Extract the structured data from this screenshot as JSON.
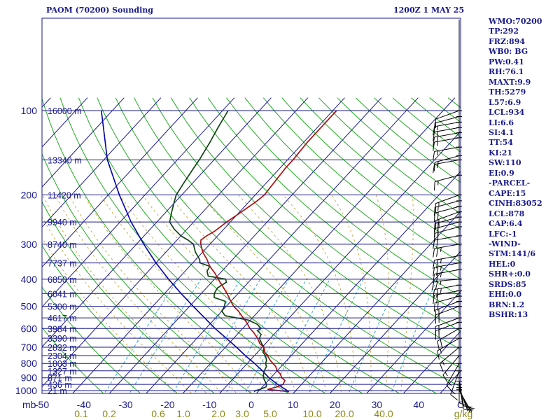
{
  "header": {
    "station": "PAOM (70200) Sounding",
    "time": "1200Z  1 MAY 25"
  },
  "indices": [
    "WMO:70200",
    "TP:292",
    "FRZ:894",
    "WB0: BG",
    "PW:0.41",
    "RH:76.1",
    "MAXT:9.9",
    "TH:5279",
    "L57:6.9",
    "LCL:934",
    "LI:6.6",
    "SI:4.1",
    "TT:54",
    "KI:21",
    "SW:110",
    "EI:0.9",
    "-PARCEL-",
    "CAPE:15",
    "CINH:83052",
    "LCL:878",
    "CAP:6.4",
    "LFC:-1",
    "-WIND-",
    "STM:141/6",
    "HEL:0",
    "SHR+:0.0",
    "SRDS:85",
    "EHI:0.0",
    "BRN:1.2",
    "BSHR:13"
  ],
  "colors": {
    "isobar": "#1a1a8c",
    "isotherm": "#1a1a8c",
    "dry_adiabat": "#22aa22",
    "moist_adiabat": "#c9a13b",
    "mixing_ratio": "#3fa7d6",
    "temperature": "#aa1111",
    "dewpoint": "#114411",
    "parcel": "#0000aa",
    "tick_label": "#1a1a8c",
    "mixing_label": "#8c8a1a"
  },
  "chart_data": {
    "type": "skew-t",
    "pressure_unit": "mb",
    "temperature_unit": "C",
    "mixing_ratio_unit": "g/kg",
    "pressure_range": [
      1000,
      100
    ],
    "temperature_range": [
      -50,
      50
    ],
    "pressure_ticks": [
      100,
      200,
      300,
      400,
      500,
      600,
      700,
      800,
      900,
      1000
    ],
    "temperature_ticks": [
      -50,
      -40,
      -30,
      -20,
      -10,
      0,
      10,
      20,
      30,
      40
    ],
    "temperature_tick_labels": [
      "-50",
      "-40",
      "-30",
      "-20",
      "-10",
      "0",
      "10",
      "20",
      "30",
      "40",
      "C"
    ],
    "mixing_ratio_labels": [
      "0.1",
      "0.2",
      "0.6",
      "1.0",
      "2.0",
      "3.0",
      "5.0",
      "10.0",
      "20.0",
      "40.0",
      "g/kg"
    ],
    "heights": [
      {
        "p": 100,
        "label": "16000 m"
      },
      {
        "p": 150,
        "label": "13340 m"
      },
      {
        "p": 200,
        "label": "11420 m"
      },
      {
        "p": 250,
        "label": "9940 m"
      },
      {
        "p": 300,
        "label": "8740 m"
      },
      {
        "p": 350,
        "label": "7737 m"
      },
      {
        "p": 400,
        "label": "6850 m"
      },
      {
        "p": 450,
        "label": "6041 m"
      },
      {
        "p": 500,
        "label": "5300 m"
      },
      {
        "p": 550,
        "label": "4617 m"
      },
      {
        "p": 600,
        "label": "3984 m"
      },
      {
        "p": 650,
        "label": "3390 m"
      },
      {
        "p": 700,
        "label": "2832 m"
      },
      {
        "p": 750,
        "label": "2304 m"
      },
      {
        "p": 800,
        "label": "1803 m"
      },
      {
        "p": 850,
        "label": "1327 m"
      },
      {
        "p": 900,
        "label": "871 m"
      },
      {
        "p": 950,
        "label": "436 m"
      },
      {
        "p": 1000,
        "label": "21 m"
      }
    ],
    "temperature_profile": [
      {
        "p": 1010,
        "t": 8.5
      },
      {
        "p": 1000,
        "t": 5.5
      },
      {
        "p": 990,
        "t": 2.0
      },
      {
        "p": 970,
        "t": 4.0
      },
      {
        "p": 950,
        "t": 5.0
      },
      {
        "p": 920,
        "t": 4.5
      },
      {
        "p": 900,
        "t": 3.0
      },
      {
        "p": 870,
        "t": 1.5
      },
      {
        "p": 850,
        "t": 0.0
      },
      {
        "p": 820,
        "t": -1.5
      },
      {
        "p": 800,
        "t": -3.0
      },
      {
        "p": 780,
        "t": -4.5
      },
      {
        "p": 750,
        "t": -6.5
      },
      {
        "p": 730,
        "t": -8.0
      },
      {
        "p": 700,
        "t": -9.5
      },
      {
        "p": 680,
        "t": -11.5
      },
      {
        "p": 650,
        "t": -13.5
      },
      {
        "p": 620,
        "t": -16.0
      },
      {
        "p": 600,
        "t": -18.0
      },
      {
        "p": 570,
        "t": -20.5
      },
      {
        "p": 550,
        "t": -22.5
      },
      {
        "p": 520,
        "t": -25.5
      },
      {
        "p": 500,
        "t": -28.0
      },
      {
        "p": 480,
        "t": -30.0
      },
      {
        "p": 450,
        "t": -33.0
      },
      {
        "p": 420,
        "t": -36.5
      },
      {
        "p": 400,
        "t": -39.0
      },
      {
        "p": 380,
        "t": -41.5
      },
      {
        "p": 360,
        "t": -44.5
      },
      {
        "p": 340,
        "t": -47.0
      },
      {
        "p": 320,
        "t": -50.0
      },
      {
        "p": 300,
        "t": -52.5
      },
      {
        "p": 290,
        "t": -53.5
      },
      {
        "p": 280,
        "t": -53.0
      },
      {
        "p": 270,
        "t": -52.0
      },
      {
        "p": 250,
        "t": -51.0
      },
      {
        "p": 230,
        "t": -49.5
      },
      {
        "p": 210,
        "t": -48.0
      },
      {
        "p": 200,
        "t": -47.5
      },
      {
        "p": 180,
        "t": -48.0
      },
      {
        "p": 160,
        "t": -48.5
      },
      {
        "p": 150,
        "t": -48.5
      },
      {
        "p": 130,
        "t": -49.0
      },
      {
        "p": 115,
        "t": -49.0
      },
      {
        "p": 100,
        "t": -49.0
      }
    ],
    "dewpoint_profile": [
      {
        "p": 1010,
        "t": -1.0
      },
      {
        "p": 1000,
        "t": -1.0
      },
      {
        "p": 990,
        "t": 0.0
      },
      {
        "p": 970,
        "t": 1.0
      },
      {
        "p": 950,
        "t": 0.5
      },
      {
        "p": 920,
        "t": -1.0
      },
      {
        "p": 900,
        "t": -2.0
      },
      {
        "p": 870,
        "t": -3.0
      },
      {
        "p": 850,
        "t": -3.5
      },
      {
        "p": 820,
        "t": -4.0
      },
      {
        "p": 800,
        "t": -5.0
      },
      {
        "p": 780,
        "t": -5.5
      },
      {
        "p": 750,
        "t": -7.0
      },
      {
        "p": 730,
        "t": -8.5
      },
      {
        "p": 700,
        "t": -9.5
      },
      {
        "p": 680,
        "t": -11.0
      },
      {
        "p": 650,
        "t": -13.0
      },
      {
        "p": 630,
        "t": -13.5
      },
      {
        "p": 610,
        "t": -15.5
      },
      {
        "p": 600,
        "t": -15.0
      },
      {
        "p": 580,
        "t": -17.0
      },
      {
        "p": 560,
        "t": -20.5
      },
      {
        "p": 540,
        "t": -28.0
      },
      {
        "p": 520,
        "t": -30.0
      },
      {
        "p": 500,
        "t": -30.5
      },
      {
        "p": 480,
        "t": -31.5
      },
      {
        "p": 465,
        "t": -35.5
      },
      {
        "p": 450,
        "t": -36.5
      },
      {
        "p": 430,
        "t": -37.0
      },
      {
        "p": 410,
        "t": -36.0
      },
      {
        "p": 400,
        "t": -37.0
      },
      {
        "p": 390,
        "t": -42.5
      },
      {
        "p": 375,
        "t": -44.0
      },
      {
        "p": 360,
        "t": -44.5
      },
      {
        "p": 350,
        "t": -48.0
      },
      {
        "p": 340,
        "t": -49.0
      },
      {
        "p": 320,
        "t": -52.0
      },
      {
        "p": 300,
        "t": -54.5
      },
      {
        "p": 290,
        "t": -57.0
      },
      {
        "p": 280,
        "t": -60.0
      },
      {
        "p": 265,
        "t": -63.5
      },
      {
        "p": 250,
        "t": -66.5
      },
      {
        "p": 230,
        "t": -68.5
      },
      {
        "p": 210,
        "t": -70.5
      },
      {
        "p": 200,
        "t": -71.5
      },
      {
        "p": 180,
        "t": -72.5
      },
      {
        "p": 160,
        "t": -73.5
      },
      {
        "p": 150,
        "t": -74.0
      },
      {
        "p": 130,
        "t": -75.5
      },
      {
        "p": 115,
        "t": -77.0
      },
      {
        "p": 100,
        "t": -78.5
      }
    ],
    "parcel_profile": [
      {
        "p": 1010,
        "t": 8.5
      },
      {
        "p": 950,
        "t": 3.5
      },
      {
        "p": 900,
        "t": -0.5
      },
      {
        "p": 850,
        "t": -4.0
      },
      {
        "p": 800,
        "t": -8.0
      },
      {
        "p": 750,
        "t": -12.5
      },
      {
        "p": 700,
        "t": -17.0
      },
      {
        "p": 650,
        "t": -22.0
      },
      {
        "p": 600,
        "t": -27.5
      },
      {
        "p": 550,
        "t": -33.0
      },
      {
        "p": 500,
        "t": -39.0
      },
      {
        "p": 450,
        "t": -45.5
      },
      {
        "p": 400,
        "t": -52.5
      },
      {
        "p": 350,
        "t": -60.0
      },
      {
        "p": 300,
        "t": -68.0
      },
      {
        "p": 250,
        "t": -77.0
      },
      {
        "p": 200,
        "t": -87.0
      },
      {
        "p": 150,
        "t": -99.0
      },
      {
        "p": 100,
        "t": -113.0
      }
    ],
    "winds": [
      {
        "p": 1000,
        "dir": 150,
        "spd": 5
      },
      {
        "p": 990,
        "dir": 155,
        "spd": 5
      },
      {
        "p": 975,
        "dir": 160,
        "spd": 5
      },
      {
        "p": 950,
        "dir": 170,
        "spd": 10
      },
      {
        "p": 925,
        "dir": 170,
        "spd": 10
      },
      {
        "p": 900,
        "dir": 180,
        "spd": 10
      },
      {
        "p": 850,
        "dir": 200,
        "spd": 15
      },
      {
        "p": 800,
        "dir": 210,
        "spd": 15
      },
      {
        "p": 750,
        "dir": 220,
        "spd": 15
      },
      {
        "p": 700,
        "dir": 230,
        "spd": 15
      },
      {
        "p": 650,
        "dir": 240,
        "spd": 15
      },
      {
        "p": 600,
        "dir": 240,
        "spd": 20
      },
      {
        "p": 570,
        "dir": 250,
        "spd": 20
      },
      {
        "p": 550,
        "dir": 250,
        "spd": 20
      },
      {
        "p": 500,
        "dir": 250,
        "spd": 20
      },
      {
        "p": 480,
        "dir": 250,
        "spd": 20
      },
      {
        "p": 460,
        "dir": 255,
        "spd": 20
      },
      {
        "p": 440,
        "dir": 260,
        "spd": 20
      },
      {
        "p": 420,
        "dir": 260,
        "spd": 25
      },
      {
        "p": 400,
        "dir": 265,
        "spd": 25
      },
      {
        "p": 370,
        "dir": 260,
        "spd": 25
      },
      {
        "p": 350,
        "dir": 260,
        "spd": 25
      },
      {
        "p": 330,
        "dir": 260,
        "spd": 25
      },
      {
        "p": 300,
        "dir": 260,
        "spd": 25
      },
      {
        "p": 280,
        "dir": 260,
        "spd": 20
      },
      {
        "p": 260,
        "dir": 255,
        "spd": 20
      },
      {
        "p": 250,
        "dir": 255,
        "spd": 20
      },
      {
        "p": 240,
        "dir": 255,
        "spd": 20
      },
      {
        "p": 230,
        "dir": 250,
        "spd": 20
      },
      {
        "p": 220,
        "dir": 255,
        "spd": 20
      },
      {
        "p": 210,
        "dir": 255,
        "spd": 15
      },
      {
        "p": 200,
        "dir": 250,
        "spd": 15
      },
      {
        "p": 170,
        "dir": 255,
        "spd": 15
      },
      {
        "p": 150,
        "dir": 260,
        "spd": 15
      },
      {
        "p": 145,
        "dir": 255,
        "spd": 15
      },
      {
        "p": 135,
        "dir": 260,
        "spd": 15
      },
      {
        "p": 125,
        "dir": 260,
        "spd": 15
      },
      {
        "p": 120,
        "dir": 260,
        "spd": 15
      },
      {
        "p": 115,
        "dir": 260,
        "spd": 15
      },
      {
        "p": 110,
        "dir": 260,
        "spd": 15
      },
      {
        "p": 105,
        "dir": 255,
        "spd": 10
      },
      {
        "p": 100,
        "dir": 250,
        "spd": 10
      }
    ]
  }
}
